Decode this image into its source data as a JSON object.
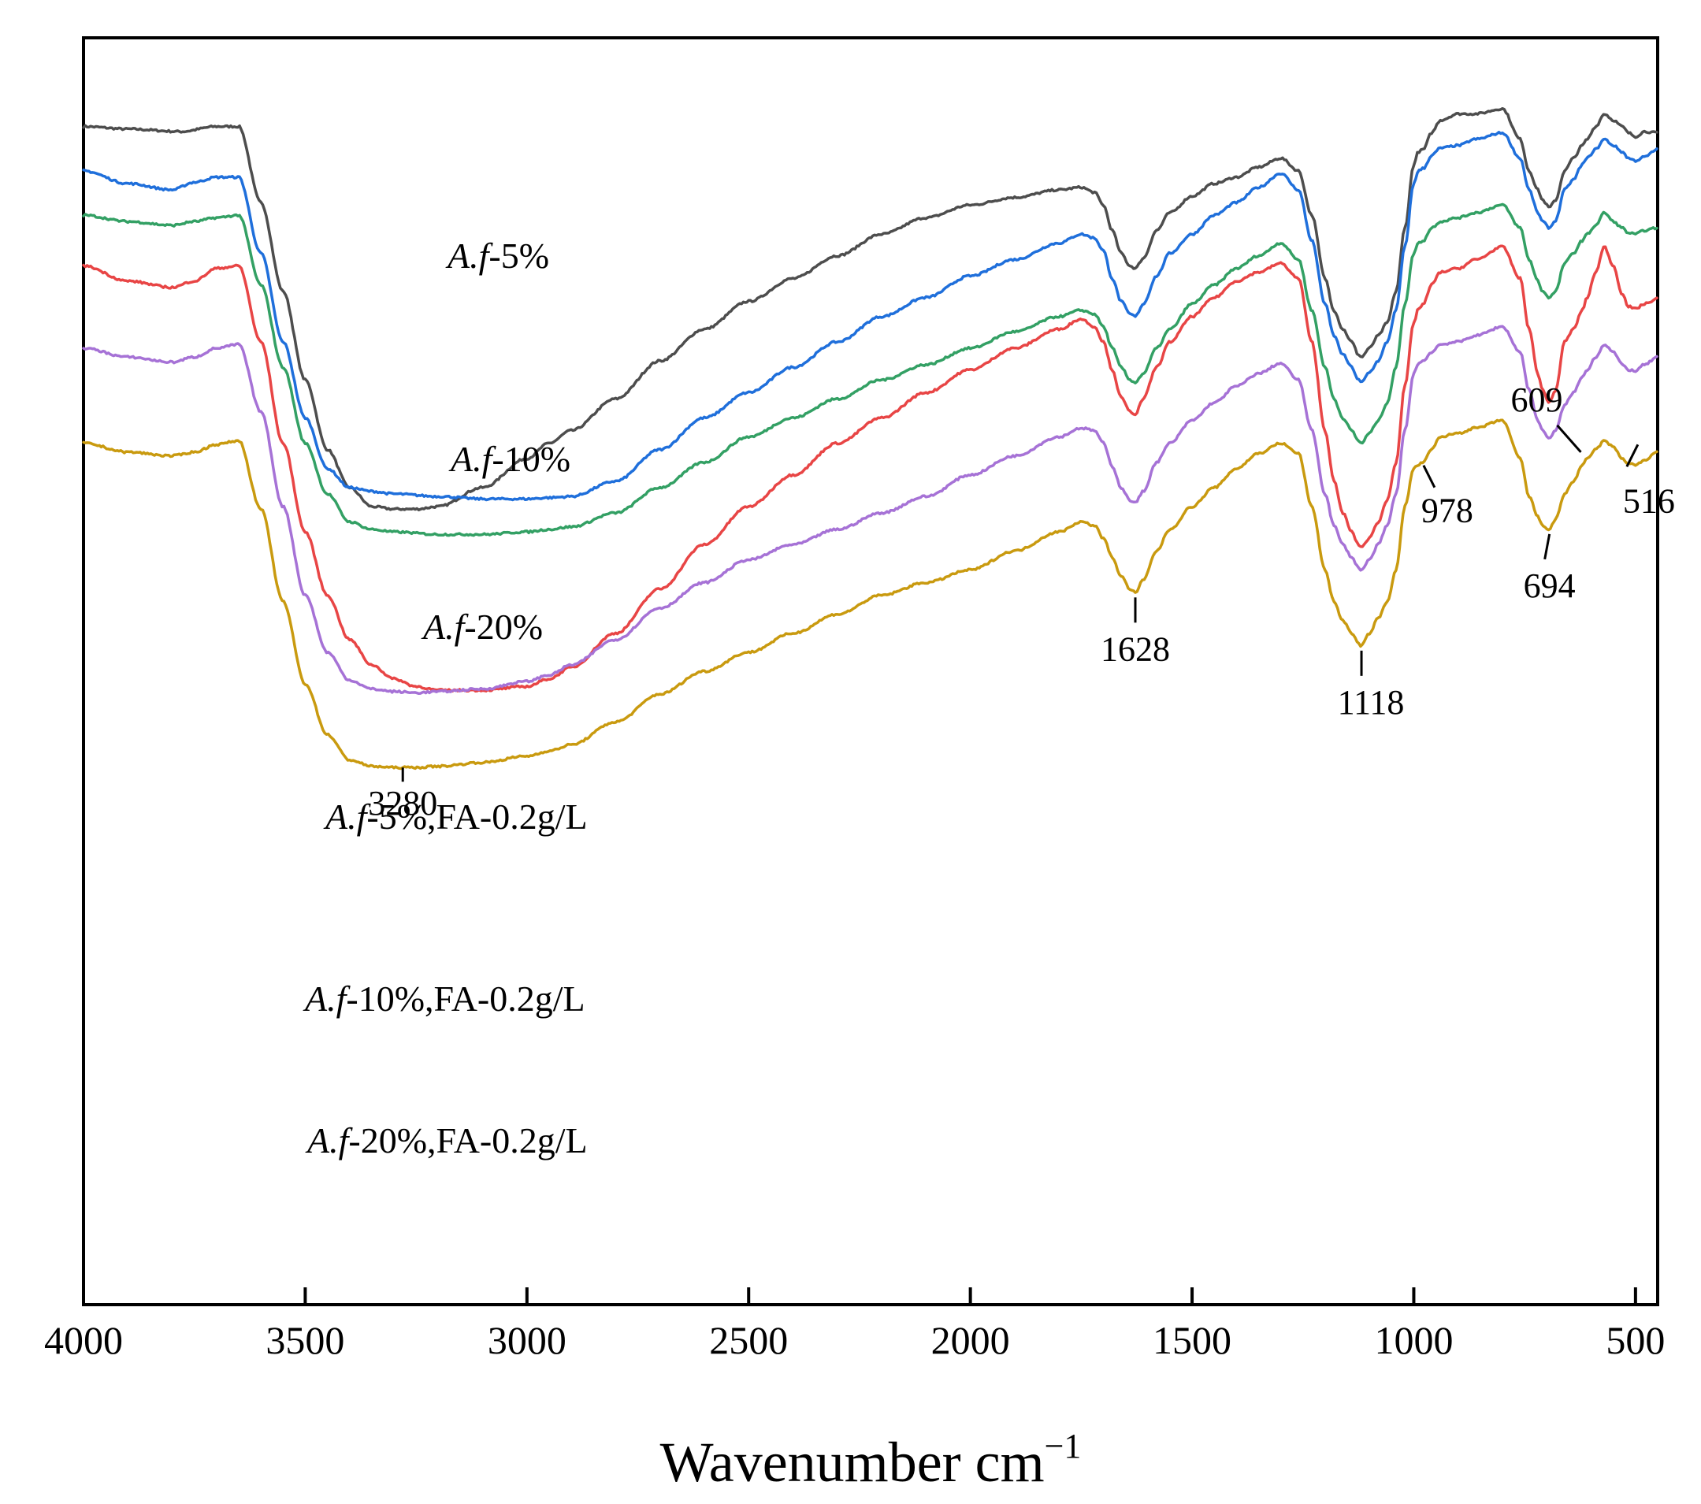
{
  "chart_data": {
    "type": "line",
    "title": "",
    "xlabel": "Wavenumber cm",
    "xlabel_superscript": "−1",
    "ylabel": "",
    "xlim": [
      4000,
      450
    ],
    "x_reversed": true,
    "y_axis_visible": false,
    "grid": false,
    "x_ticks": [
      4000,
      3500,
      3000,
      2500,
      2000,
      1500,
      1000,
      500
    ],
    "x_tick_labels": [
      "4000",
      "3500",
      "3000",
      "2500",
      "2000",
      "1500",
      "1000",
      "500"
    ],
    "series": [
      {
        "name": "A.f-5%",
        "label_prefix": "A.f",
        "label_suffix": "-5%",
        "color": "#4d4d4d",
        "x": [
          4000,
          3900,
          3780,
          3700,
          3650,
          3600,
          3550,
          3500,
          3450,
          3400,
          3350,
          3300,
          3250,
          3200,
          3100,
          3000,
          2950,
          2900,
          2800,
          2700,
          2600,
          2500,
          2400,
          2300,
          2200,
          2100,
          2000,
          1900,
          1800,
          1750,
          1720,
          1700,
          1680,
          1660,
          1640,
          1628,
          1610,
          1580,
          1550,
          1500,
          1450,
          1400,
          1350,
          1300,
          1260,
          1230,
          1200,
          1180,
          1160,
          1140,
          1125,
          1118,
          1100,
          1080,
          1060,
          1040,
          1020,
          1000,
          990,
          978,
          960,
          940,
          900,
          860,
          800,
          760,
          740,
          720,
          710,
          694,
          680,
          660,
          640,
          620,
          609,
          590,
          570,
          550,
          530,
          516,
          500,
          480,
          450
        ],
        "y": [
          0.93,
          0.928,
          0.926,
          0.93,
          0.93,
          0.87,
          0.8,
          0.73,
          0.675,
          0.645,
          0.63,
          0.628,
          0.628,
          0.63,
          0.645,
          0.668,
          0.68,
          0.69,
          0.715,
          0.745,
          0.77,
          0.792,
          0.81,
          0.828,
          0.845,
          0.858,
          0.868,
          0.874,
          0.88,
          0.882,
          0.878,
          0.868,
          0.848,
          0.83,
          0.82,
          0.818,
          0.826,
          0.848,
          0.862,
          0.875,
          0.885,
          0.89,
          0.898,
          0.905,
          0.895,
          0.86,
          0.81,
          0.785,
          0.77,
          0.76,
          0.75,
          0.748,
          0.755,
          0.765,
          0.775,
          0.8,
          0.85,
          0.9,
          0.91,
          0.912,
          0.925,
          0.935,
          0.94,
          0.94,
          0.944,
          0.92,
          0.895,
          0.88,
          0.872,
          0.866,
          0.872,
          0.895,
          0.905,
          0.915,
          0.92,
          0.93,
          0.94,
          0.935,
          0.93,
          0.925,
          0.922,
          0.926,
          0.925
        ]
      },
      {
        "name": "A.f-10%",
        "label_prefix": "A.f",
        "label_suffix": "-10%",
        "color": "#1f6fdb",
        "x": [
          4000,
          3900,
          3800,
          3750,
          3700,
          3650,
          3600,
          3550,
          3500,
          3450,
          3400,
          3350,
          3300,
          3200,
          3100,
          3000,
          2950,
          2900,
          2800,
          2700,
          2600,
          2500,
          2400,
          2300,
          2200,
          2100,
          2000,
          1900,
          1800,
          1750,
          1720,
          1700,
          1680,
          1660,
          1640,
          1628,
          1610,
          1580,
          1550,
          1500,
          1450,
          1400,
          1350,
          1300,
          1260,
          1230,
          1200,
          1180,
          1160,
          1140,
          1125,
          1118,
          1100,
          1080,
          1060,
          1040,
          1020,
          1000,
          990,
          978,
          960,
          940,
          900,
          860,
          800,
          760,
          740,
          720,
          710,
          694,
          680,
          660,
          640,
          620,
          609,
          590,
          570,
          550,
          530,
          516,
          500,
          480,
          450
        ],
        "y": [
          0.895,
          0.885,
          0.88,
          0.886,
          0.89,
          0.89,
          0.83,
          0.76,
          0.7,
          0.66,
          0.645,
          0.642,
          0.64,
          0.638,
          0.636,
          0.636,
          0.637,
          0.638,
          0.65,
          0.675,
          0.7,
          0.72,
          0.74,
          0.76,
          0.78,
          0.795,
          0.812,
          0.825,
          0.838,
          0.845,
          0.842,
          0.832,
          0.81,
          0.792,
          0.782,
          0.78,
          0.79,
          0.812,
          0.83,
          0.845,
          0.86,
          0.87,
          0.882,
          0.893,
          0.88,
          0.84,
          0.79,
          0.765,
          0.75,
          0.74,
          0.73,
          0.728,
          0.736,
          0.745,
          0.76,
          0.785,
          0.835,
          0.885,
          0.895,
          0.897,
          0.907,
          0.913,
          0.915,
          0.92,
          0.925,
          0.905,
          0.88,
          0.862,
          0.855,
          0.85,
          0.856,
          0.88,
          0.888,
          0.9,
          0.905,
          0.912,
          0.92,
          0.915,
          0.91,
          0.905,
          0.903,
          0.906,
          0.912
        ]
      },
      {
        "name": "A.f-20%",
        "label_prefix": "A.f",
        "label_suffix": "-20%",
        "color": "#33a064",
        "x": [
          4000,
          3900,
          3800,
          3750,
          3700,
          3650,
          3600,
          3550,
          3500,
          3450,
          3400,
          3350,
          3300,
          3200,
          3100,
          3000,
          2950,
          2900,
          2800,
          2700,
          2600,
          2500,
          2400,
          2300,
          2200,
          2100,
          2000,
          1900,
          1800,
          1750,
          1720,
          1700,
          1680,
          1660,
          1640,
          1628,
          1610,
          1580,
          1550,
          1500,
          1450,
          1400,
          1350,
          1300,
          1260,
          1230,
          1200,
          1180,
          1160,
          1140,
          1125,
          1118,
          1100,
          1080,
          1060,
          1040,
          1020,
          1000,
          990,
          978,
          960,
          940,
          900,
          860,
          800,
          760,
          740,
          720,
          710,
          694,
          680,
          660,
          640,
          620,
          609,
          590,
          570,
          550,
          530,
          516,
          500,
          480,
          450
        ],
        "y": [
          0.86,
          0.855,
          0.852,
          0.855,
          0.858,
          0.86,
          0.805,
          0.74,
          0.68,
          0.64,
          0.618,
          0.612,
          0.61,
          0.608,
          0.608,
          0.61,
          0.612,
          0.614,
          0.625,
          0.645,
          0.665,
          0.685,
          0.7,
          0.715,
          0.73,
          0.742,
          0.755,
          0.768,
          0.78,
          0.785,
          0.782,
          0.772,
          0.755,
          0.74,
          0.73,
          0.728,
          0.735,
          0.755,
          0.77,
          0.79,
          0.805,
          0.818,
          0.828,
          0.838,
          0.825,
          0.785,
          0.74,
          0.715,
          0.7,
          0.69,
          0.682,
          0.68,
          0.688,
          0.698,
          0.712,
          0.74,
          0.79,
          0.83,
          0.838,
          0.84,
          0.85,
          0.855,
          0.858,
          0.862,
          0.868,
          0.85,
          0.825,
          0.808,
          0.8,
          0.795,
          0.8,
          0.822,
          0.83,
          0.84,
          0.845,
          0.852,
          0.862,
          0.855,
          0.85,
          0.846,
          0.845,
          0.848,
          0.85
        ]
      },
      {
        "name": "A.f-5%,FA-0.2g/L",
        "label_prefix": "A.f",
        "label_suffix": "-5%,FA-0.2g/L",
        "color": "#e84545",
        "x": [
          4000,
          3900,
          3800,
          3750,
          3700,
          3650,
          3600,
          3550,
          3500,
          3450,
          3400,
          3350,
          3300,
          3250,
          3200,
          3100,
          3000,
          2950,
          2900,
          2800,
          2700,
          2600,
          2500,
          2400,
          2300,
          2200,
          2100,
          2000,
          1900,
          1800,
          1750,
          1720,
          1700,
          1680,
          1660,
          1640,
          1628,
          1610,
          1580,
          1550,
          1500,
          1450,
          1400,
          1350,
          1300,
          1260,
          1230,
          1200,
          1180,
          1160,
          1140,
          1125,
          1118,
          1100,
          1080,
          1060,
          1040,
          1020,
          1000,
          990,
          978,
          960,
          940,
          900,
          860,
          800,
          760,
          740,
          720,
          710,
          694,
          680,
          660,
          640,
          620,
          609,
          590,
          570,
          550,
          530,
          516,
          500,
          480,
          450
        ],
        "y": [
          0.82,
          0.808,
          0.803,
          0.808,
          0.818,
          0.82,
          0.76,
          0.68,
          0.61,
          0.56,
          0.525,
          0.505,
          0.494,
          0.488,
          0.485,
          0.485,
          0.488,
          0.494,
          0.503,
          0.53,
          0.565,
          0.6,
          0.63,
          0.655,
          0.68,
          0.7,
          0.72,
          0.738,
          0.755,
          0.77,
          0.778,
          0.772,
          0.76,
          0.738,
          0.716,
          0.705,
          0.703,
          0.715,
          0.74,
          0.76,
          0.78,
          0.795,
          0.808,
          0.815,
          0.822,
          0.81,
          0.76,
          0.69,
          0.65,
          0.625,
          0.61,
          0.6,
          0.598,
          0.605,
          0.618,
          0.635,
          0.665,
          0.725,
          0.775,
          0.786,
          0.79,
          0.805,
          0.815,
          0.818,
          0.825,
          0.835,
          0.81,
          0.77,
          0.735,
          0.722,
          0.712,
          0.722,
          0.76,
          0.77,
          0.785,
          0.795,
          0.815,
          0.835,
          0.82,
          0.798,
          0.788,
          0.786,
          0.79,
          0.794
        ]
      },
      {
        "name": "A.f-10%,FA-0.2g/L",
        "label_prefix": "A.f",
        "label_suffix": "-10%,FA-0.2g/L",
        "color": "#a672d6",
        "x": [
          4000,
          3900,
          3800,
          3750,
          3700,
          3650,
          3600,
          3550,
          3500,
          3450,
          3400,
          3350,
          3300,
          3250,
          3200,
          3100,
          3000,
          2950,
          2900,
          2800,
          2700,
          2600,
          2500,
          2400,
          2300,
          2200,
          2100,
          2000,
          1900,
          1800,
          1750,
          1720,
          1700,
          1680,
          1660,
          1640,
          1628,
          1610,
          1580,
          1550,
          1500,
          1450,
          1400,
          1350,
          1300,
          1260,
          1230,
          1200,
          1180,
          1160,
          1140,
          1125,
          1118,
          1100,
          1080,
          1060,
          1040,
          1020,
          1000,
          990,
          978,
          960,
          940,
          900,
          860,
          800,
          760,
          740,
          720,
          710,
          694,
          680,
          660,
          640,
          620,
          609,
          590,
          570,
          550,
          530,
          516,
          500,
          480,
          450
        ],
        "y": [
          0.755,
          0.748,
          0.744,
          0.748,
          0.755,
          0.758,
          0.705,
          0.63,
          0.56,
          0.515,
          0.493,
          0.486,
          0.484,
          0.483,
          0.484,
          0.486,
          0.492,
          0.497,
          0.505,
          0.525,
          0.55,
          0.57,
          0.588,
          0.6,
          0.612,
          0.625,
          0.638,
          0.655,
          0.67,
          0.685,
          0.692,
          0.69,
          0.68,
          0.662,
          0.645,
          0.635,
          0.633,
          0.642,
          0.665,
          0.68,
          0.698,
          0.712,
          0.725,
          0.735,
          0.743,
          0.73,
          0.69,
          0.64,
          0.615,
          0.6,
          0.59,
          0.582,
          0.58,
          0.588,
          0.6,
          0.615,
          0.64,
          0.69,
          0.735,
          0.743,
          0.745,
          0.752,
          0.758,
          0.76,
          0.765,
          0.772,
          0.752,
          0.722,
          0.698,
          0.69,
          0.684,
          0.69,
          0.71,
          0.72,
          0.732,
          0.738,
          0.748,
          0.758,
          0.752,
          0.742,
          0.738,
          0.737,
          0.742,
          0.748
        ]
      },
      {
        "name": "A.f-20%,FA-0.2g/L",
        "label_prefix": "A.f",
        "label_suffix": "-20%,FA-0.2g/L",
        "color": "#c99a0f",
        "x": [
          4000,
          3900,
          3800,
          3750,
          3700,
          3650,
          3600,
          3550,
          3500,
          3450,
          3400,
          3350,
          3300,
          3280,
          3250,
          3200,
          3100,
          3000,
          2950,
          2900,
          2800,
          2700,
          2600,
          2500,
          2400,
          2300,
          2200,
          2100,
          2000,
          1900,
          1800,
          1750,
          1720,
          1700,
          1680,
          1660,
          1640,
          1628,
          1610,
          1580,
          1550,
          1500,
          1450,
          1400,
          1350,
          1300,
          1260,
          1230,
          1200,
          1180,
          1160,
          1140,
          1125,
          1118,
          1100,
          1080,
          1060,
          1040,
          1020,
          1000,
          990,
          978,
          960,
          940,
          900,
          860,
          800,
          760,
          740,
          720,
          710,
          694,
          680,
          660,
          640,
          620,
          609,
          590,
          570,
          550,
          530,
          516,
          500,
          480,
          450
        ],
        "y": [
          0.68,
          0.673,
          0.67,
          0.673,
          0.679,
          0.682,
          0.628,
          0.555,
          0.49,
          0.45,
          0.43,
          0.425,
          0.424,
          0.424,
          0.424,
          0.425,
          0.428,
          0.433,
          0.437,
          0.442,
          0.46,
          0.482,
          0.5,
          0.515,
          0.53,
          0.545,
          0.56,
          0.57,
          0.58,
          0.595,
          0.61,
          0.618,
          0.615,
          0.605,
          0.59,
          0.575,
          0.565,
          0.562,
          0.572,
          0.595,
          0.612,
          0.63,
          0.645,
          0.66,
          0.672,
          0.68,
          0.672,
          0.63,
          0.58,
          0.555,
          0.54,
          0.53,
          0.522,
          0.52,
          0.53,
          0.542,
          0.555,
          0.58,
          0.63,
          0.66,
          0.663,
          0.665,
          0.675,
          0.685,
          0.688,
          0.692,
          0.698,
          0.668,
          0.638,
          0.622,
          0.615,
          0.612,
          0.62,
          0.64,
          0.65,
          0.662,
          0.668,
          0.675,
          0.682,
          0.677,
          0.668,
          0.664,
          0.663,
          0.666,
          0.674
        ]
      }
    ],
    "annotations": [
      {
        "text": "3280",
        "x": 3280
      },
      {
        "text": "1628",
        "x": 1628
      },
      {
        "text": "1118",
        "x": 1118
      },
      {
        "text": "978",
        "x": 978
      },
      {
        "text": "694",
        "x": 694
      },
      {
        "text": "609",
        "x": 609
      },
      {
        "text": "516",
        "x": 516
      }
    ]
  }
}
